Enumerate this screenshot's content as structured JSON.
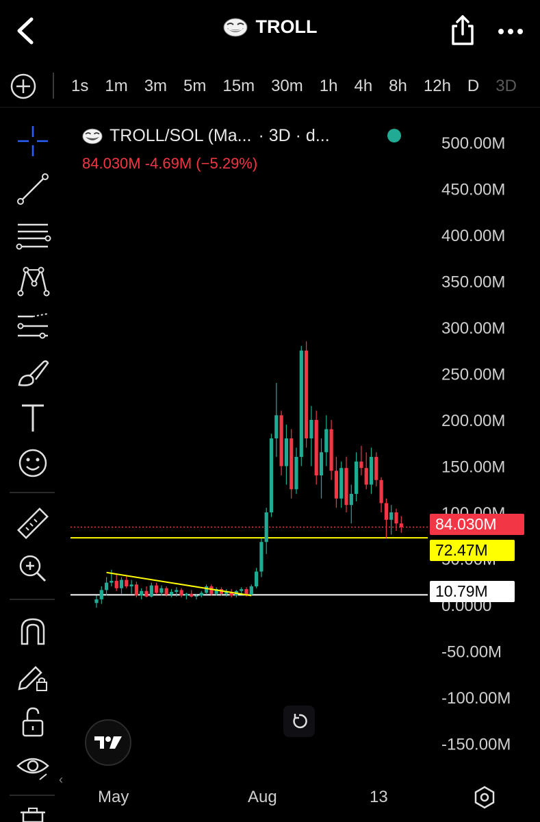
{
  "header": {
    "title": "TROLL",
    "icons": {
      "back": "chevron-left-icon",
      "share": "share-icon",
      "more": "more-horizontal-icon",
      "logo": "troll-face-icon"
    }
  },
  "intervals": [
    "1s",
    "1m",
    "3m",
    "5m",
    "15m",
    "30m",
    "1h",
    "4h",
    "8h",
    "12h",
    "D",
    "3D"
  ],
  "selected_interval": "3D",
  "toolbar": {
    "tools": [
      "crosshair-icon",
      "trend-line-icon",
      "fib-levels-icon",
      "pattern-icon",
      "projection-icon",
      "brush-icon",
      "text-icon",
      "emoji-icon",
      "ruler-icon",
      "zoom-in-icon",
      "magnet-icon",
      "lock-drawing-icon",
      "unlock-icon",
      "eye-icon",
      "trash-icon"
    ]
  },
  "legend": {
    "symbol": "TROLL/SOL (Ma...",
    "interval": "· 3D · d...",
    "ohlc_summary": "84.030M  -4.69M (−5.29%)",
    "status_color": "#22ab94"
  },
  "price_tags": {
    "current": "84.030M",
    "yellow_line": "72.47M",
    "white_line": "10.79M"
  },
  "chart_data": {
    "type": "candlestick",
    "y_axis": {
      "ticks": [
        "500.00M",
        "450.00M",
        "400.00M",
        "350.00M",
        "300.00M",
        "250.00M",
        "200.00M",
        "150.00M",
        "100.00M",
        "50.00M",
        "0.0000",
        "-50.00M",
        "-100.00M",
        "-150.00M"
      ],
      "tick_values": [
        500,
        450,
        400,
        350,
        300,
        250,
        200,
        150,
        100,
        50,
        0,
        -50,
        -100,
        -150
      ],
      "ylim": [
        -160,
        520
      ],
      "unit": "M"
    },
    "x_axis": {
      "labels": [
        "May",
        "Aug",
        "13"
      ]
    },
    "colors": {
      "up": "#22ab94",
      "down": "#f23645",
      "yellow_line": "#ffff00",
      "white_line": "#ffffff",
      "current_price_line": "#f23645"
    },
    "horizontal_lines": [
      {
        "price": 72.47,
        "color": "#ffff00"
      },
      {
        "price": 10.79,
        "color": "#ffffff"
      },
      {
        "price": 84.03,
        "color": "#f23645",
        "style": "dotted"
      }
    ],
    "trendline": {
      "from": {
        "index": 2,
        "price": 35
      },
      "to": {
        "index": 31,
        "price": 10
      },
      "color": "#ffff00"
    },
    "candles": [
      [
        2,
        10,
        -3,
        6
      ],
      [
        6,
        20,
        1,
        16
      ],
      [
        16,
        30,
        10,
        24
      ],
      [
        24,
        38,
        20,
        26
      ],
      [
        26,
        33,
        15,
        18
      ],
      [
        18,
        30,
        12,
        27
      ],
      [
        27,
        31,
        18,
        20
      ],
      [
        20,
        27,
        12,
        22
      ],
      [
        22,
        25,
        8,
        10
      ],
      [
        10,
        18,
        6,
        15
      ],
      [
        15,
        20,
        8,
        9
      ],
      [
        9,
        24,
        8,
        21
      ],
      [
        21,
        24,
        11,
        13
      ],
      [
        13,
        21,
        10,
        18
      ],
      [
        18,
        20,
        9,
        11
      ],
      [
        11,
        17,
        8,
        14
      ],
      [
        14,
        19,
        9,
        16
      ],
      [
        16,
        18,
        8,
        10
      ],
      [
        10,
        13,
        6,
        12
      ],
      [
        12,
        16,
        8,
        9
      ],
      [
        9,
        12,
        6,
        10
      ],
      [
        10,
        15,
        8,
        13
      ],
      [
        13,
        22,
        11,
        20
      ],
      [
        20,
        22,
        10,
        12
      ],
      [
        12,
        19,
        10,
        17
      ],
      [
        17,
        19,
        10,
        12
      ],
      [
        12,
        17,
        9,
        14
      ],
      [
        14,
        17,
        8,
        10
      ],
      [
        10,
        16,
        8,
        15
      ],
      [
        15,
        19,
        12,
        17
      ],
      [
        17,
        19,
        9,
        11
      ],
      [
        11,
        22,
        10,
        20
      ],
      [
        20,
        40,
        18,
        36
      ],
      [
        36,
        72,
        30,
        68
      ],
      [
        68,
        105,
        55,
        100
      ],
      [
        100,
        185,
        95,
        180
      ],
      [
        180,
        240,
        160,
        205
      ],
      [
        205,
        210,
        140,
        150
      ],
      [
        150,
        195,
        130,
        180
      ],
      [
        180,
        190,
        115,
        125
      ],
      [
        125,
        170,
        120,
        160
      ],
      [
        160,
        280,
        150,
        275
      ],
      [
        275,
        285,
        170,
        180
      ],
      [
        180,
        215,
        150,
        200
      ],
      [
        200,
        210,
        130,
        140
      ],
      [
        140,
        180,
        115,
        165
      ],
      [
        165,
        205,
        150,
        190
      ],
      [
        190,
        200,
        135,
        145
      ],
      [
        145,
        160,
        105,
        115
      ],
      [
        115,
        155,
        105,
        148
      ],
      [
        148,
        160,
        100,
        108
      ],
      [
        108,
        130,
        88,
        120
      ],
      [
        120,
        165,
        112,
        155
      ],
      [
        155,
        172,
        140,
        148
      ],
      [
        148,
        165,
        125,
        130
      ],
      [
        130,
        170,
        120,
        160
      ],
      [
        160,
        165,
        128,
        135
      ],
      [
        135,
        138,
        100,
        110
      ],
      [
        110,
        115,
        72,
        92
      ],
      [
        92,
        108,
        76,
        100
      ],
      [
        100,
        104,
        80,
        88
      ],
      [
        88,
        96,
        78,
        84
      ]
    ]
  },
  "bottom": {
    "settings_icon": "settings-hexagon-icon"
  }
}
